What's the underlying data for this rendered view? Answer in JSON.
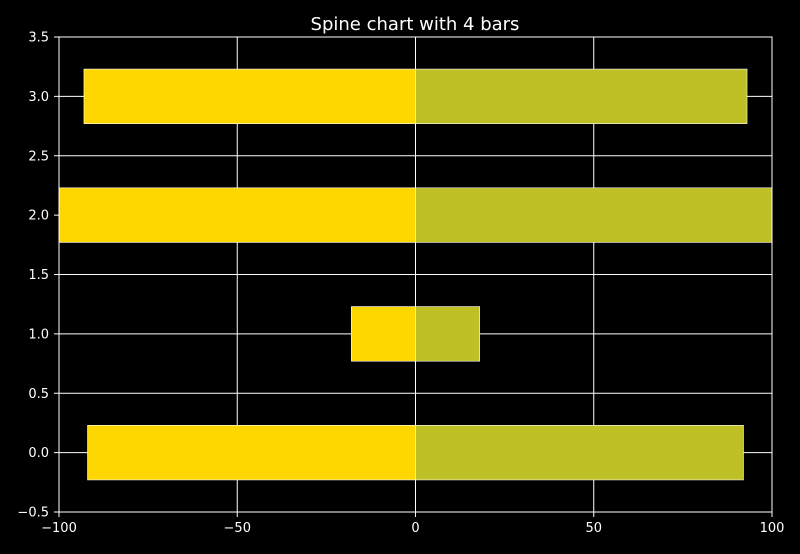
{
  "chart_data": {
    "type": "bar",
    "orientation": "horizontal",
    "title": "Spine chart with 4 bars",
    "xlabel": "",
    "ylabel": "",
    "xlim": [
      -100,
      100
    ],
    "ylim": [
      -0.5,
      3.5
    ],
    "xticks": [
      -100,
      -50,
      0,
      50,
      100
    ],
    "xtick_labels": [
      "−100",
      "−50",
      "0",
      "50",
      "100"
    ],
    "yticks": [
      -0.5,
      0.0,
      0.5,
      1.0,
      1.5,
      2.0,
      2.5,
      3.0,
      3.5
    ],
    "ytick_labels": [
      "−0.5",
      "0.0",
      "0.5",
      "1.0",
      "1.5",
      "2.0",
      "2.5",
      "3.0",
      "3.5"
    ],
    "grid": true,
    "bar_height": 0.46,
    "y": [
      0,
      1,
      2,
      3
    ],
    "series": [
      {
        "values": [
          -92,
          -18,
          -100,
          -93
        ],
        "color": "#ffd700"
      },
      {
        "values": [
          92,
          18,
          100,
          93
        ],
        "color": "#bfbf26"
      }
    ],
    "colors": {
      "background": "#000000",
      "text": "#ffffff",
      "grid": "#ffffff",
      "bar_edge": "#ffffff"
    }
  }
}
